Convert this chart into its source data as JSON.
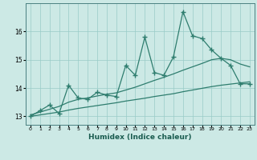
{
  "x": [
    0,
    1,
    2,
    3,
    4,
    5,
    6,
    7,
    8,
    9,
    10,
    11,
    12,
    13,
    14,
    15,
    16,
    17,
    18,
    19,
    20,
    21,
    22,
    23
  ],
  "y_main": [
    13.0,
    13.2,
    13.4,
    13.1,
    14.1,
    13.65,
    13.6,
    13.85,
    13.75,
    13.7,
    14.8,
    14.45,
    15.8,
    14.55,
    14.45,
    15.1,
    16.7,
    15.85,
    15.75,
    15.35,
    15.05,
    14.8,
    14.15,
    14.15
  ],
  "y_line1": [
    13.05,
    13.15,
    13.25,
    13.35,
    13.5,
    13.6,
    13.65,
    13.72,
    13.78,
    13.83,
    13.93,
    14.03,
    14.15,
    14.27,
    14.38,
    14.5,
    14.63,
    14.75,
    14.87,
    15.0,
    15.05,
    15.0,
    14.85,
    14.75
  ],
  "y_line2": [
    13.0,
    13.05,
    13.1,
    13.15,
    13.22,
    13.28,
    13.33,
    13.38,
    13.43,
    13.48,
    13.54,
    13.59,
    13.64,
    13.7,
    13.75,
    13.8,
    13.87,
    13.93,
    13.99,
    14.05,
    14.1,
    14.14,
    14.18,
    14.22
  ],
  "color_main": "#2e7d6e",
  "color_line1": "#2e7d6e",
  "color_line2": "#2e7d6e",
  "bg_color": "#cce9e5",
  "grid_color": "#99ccc8",
  "xlabel": "Humidex (Indice chaleur)",
  "ylim": [
    12.7,
    17.0
  ],
  "xlim": [
    -0.5,
    23.5
  ],
  "yticks": [
    13,
    14,
    15,
    16
  ],
  "xticks": [
    0,
    1,
    2,
    3,
    4,
    5,
    6,
    7,
    8,
    9,
    10,
    11,
    12,
    13,
    14,
    15,
    16,
    17,
    18,
    19,
    20,
    21,
    22,
    23
  ],
  "marker": "+",
  "markersize": 4,
  "markeredgewidth": 1.0,
  "linewidth": 0.9
}
